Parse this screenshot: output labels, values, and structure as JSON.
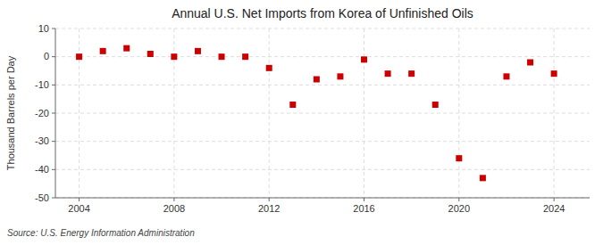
{
  "chart_data": {
    "type": "scatter",
    "title": "Annual U.S. Net Imports from Korea of Unfinished Oils",
    "ylabel": "Thousand Barrels per Day",
    "source": "Source: U.S. Energy Information Administration",
    "x": [
      2004,
      2005,
      2006,
      2007,
      2008,
      2009,
      2010,
      2011,
      2012,
      2013,
      2014,
      2015,
      2016,
      2017,
      2018,
      2019,
      2020,
      2021,
      2022,
      2023,
      2024
    ],
    "values": [
      0,
      2,
      3,
      1,
      0,
      2,
      0,
      0,
      -4,
      -17,
      -8,
      -7,
      -1,
      -6,
      -6,
      -17,
      -36,
      -43,
      -7,
      -2,
      -6
    ],
    "color": "#CC0000",
    "marker": "square",
    "ylim": [
      -50,
      10
    ],
    "yticks": [
      -50,
      -40,
      -30,
      -20,
      -10,
      0,
      10
    ],
    "xlim": [
      2003,
      2025.5
    ],
    "xticks": [
      2004,
      2008,
      2012,
      2016,
      2020,
      2024
    ],
    "grid": true
  }
}
